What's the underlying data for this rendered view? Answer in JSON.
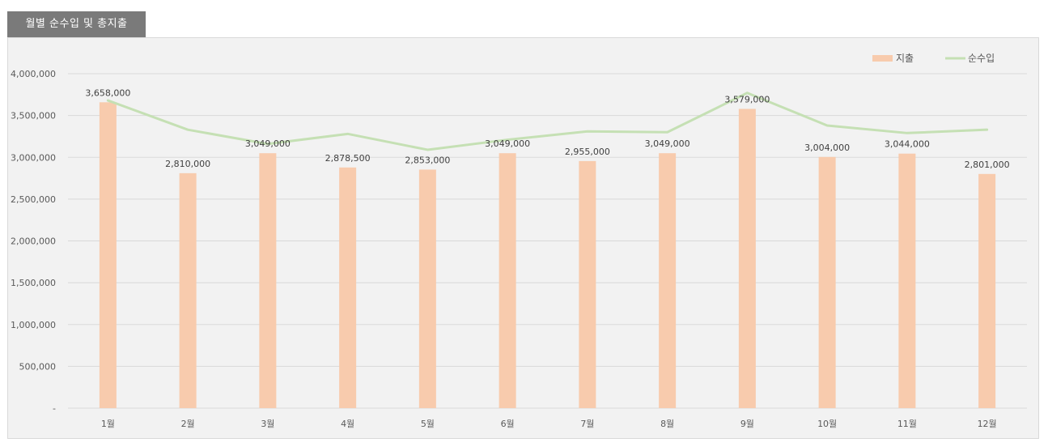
{
  "header": {
    "title": "월별 순수입 및 총지출"
  },
  "colors": {
    "bar": "#f8cbad",
    "line": "#c5e0b4",
    "grid": "#d9d9d9",
    "panel": "#f2f2f2"
  },
  "chart_data": {
    "type": "bar+line",
    "title": "월별 순수입 및 총지출",
    "categories": [
      "1월",
      "2월",
      "3월",
      "4월",
      "5월",
      "6월",
      "7월",
      "8월",
      "9월",
      "10월",
      "11월",
      "12월"
    ],
    "series": [
      {
        "name": "지출",
        "type": "bar",
        "values": [
          3658000,
          2810000,
          3049000,
          2878500,
          2853000,
          3049000,
          2955000,
          3049000,
          3579000,
          3004000,
          3044000,
          2801000
        ],
        "labels": [
          "3,658,000",
          "2,810,000",
          "3,049,000",
          "2,878,500",
          "2,853,000",
          "3,049,000",
          "2,955,000",
          "3,049,000",
          "3,579,000",
          "3,004,000",
          "3,044,000",
          "2,801,000"
        ]
      },
      {
        "name": "순수입",
        "type": "line",
        "values": [
          3680000,
          3330000,
          3160000,
          3280000,
          3090000,
          3210000,
          3310000,
          3300000,
          3770000,
          3380000,
          3290000,
          3330000
        ]
      }
    ],
    "ylim": [
      0,
      4000000
    ],
    "yticks": [
      0,
      500000,
      1000000,
      1500000,
      2000000,
      2500000,
      3000000,
      3500000,
      4000000
    ],
    "ytick_labels": [
      "-",
      "500,000",
      "1,000,000",
      "1,500,000",
      "2,000,000",
      "2,500,000",
      "3,000,000",
      "3,500,000",
      "4,000,000"
    ],
    "grid": true,
    "legend_position": "top-right"
  }
}
